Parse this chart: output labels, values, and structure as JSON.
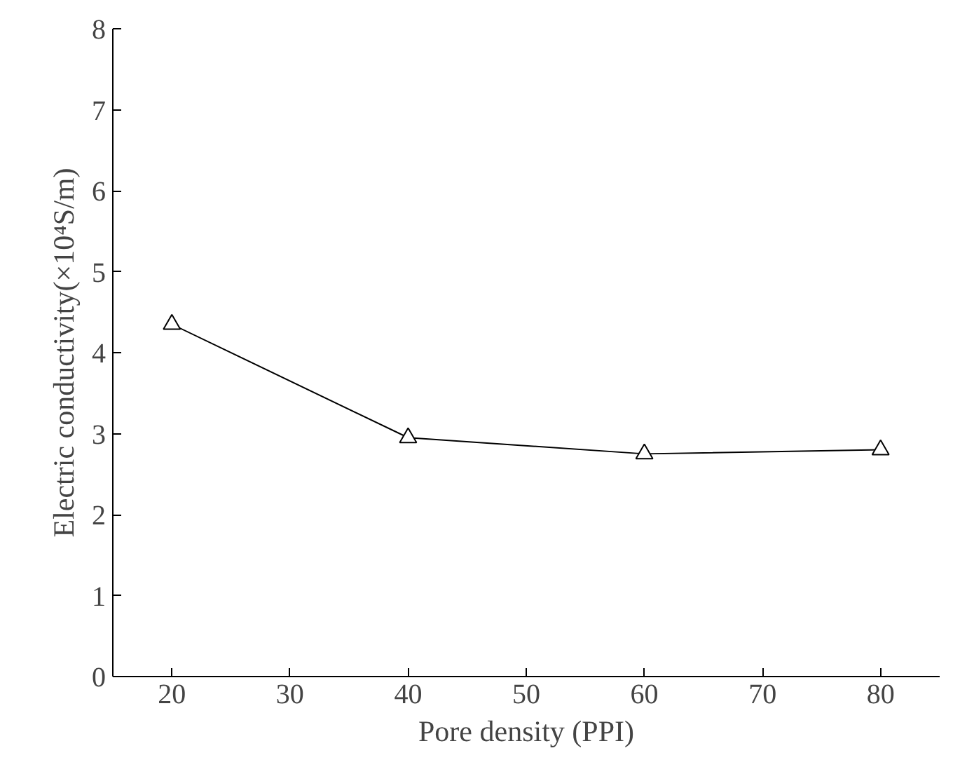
{
  "chart_data": {
    "type": "line",
    "xlabel": "Pore density (PPI)",
    "ylabel": "Electric conductivity(×10⁴S/m)",
    "x": [
      20,
      40,
      60,
      80
    ],
    "series": [
      {
        "color": "#000000",
        "values": [
          4.35,
          2.95,
          2.75,
          2.8
        ]
      }
    ],
    "xlim": [
      15,
      85
    ],
    "xticks": [
      20,
      30,
      40,
      50,
      60,
      70,
      80
    ],
    "ylim": [
      0,
      8
    ],
    "yticks": [
      0,
      1,
      2,
      3,
      4,
      5,
      6,
      7,
      8
    ],
    "marker": "triangle",
    "line_style": "solid",
    "grid": false
  }
}
